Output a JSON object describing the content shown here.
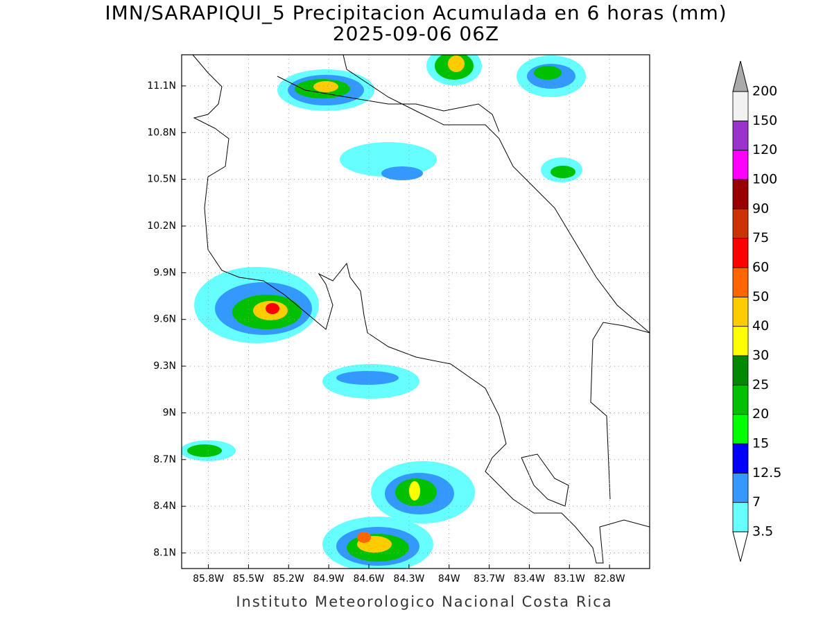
{
  "title": "IMN/SARAPIQUI_5 Precipitacion Acumulada en 6 horas (mm)",
  "subtitle": "2025-09-06 06Z",
  "footer": "Instituto Meteorologico Nacional Costa Rica",
  "map": {
    "xlim": [
      -86.0,
      -82.5
    ],
    "ylim": [
      8.0,
      11.3
    ],
    "xticks": [
      {
        "value": -85.8,
        "label": "85.8W"
      },
      {
        "value": -85.5,
        "label": "85.5W"
      },
      {
        "value": -85.2,
        "label": "85.2W"
      },
      {
        "value": -84.9,
        "label": "84.9W"
      },
      {
        "value": -84.6,
        "label": "84.6W"
      },
      {
        "value": -84.3,
        "label": "84.3W"
      },
      {
        "value": -84.0,
        "label": "84W"
      },
      {
        "value": -83.7,
        "label": "83.7W"
      },
      {
        "value": -83.4,
        "label": "83.4W"
      },
      {
        "value": -83.1,
        "label": "83.1W"
      },
      {
        "value": -82.8,
        "label": "82.8W"
      }
    ],
    "yticks": [
      {
        "value": 8.1,
        "label": "8.1N"
      },
      {
        "value": 8.4,
        "label": "8.4N"
      },
      {
        "value": 8.7,
        "label": "8.7N"
      },
      {
        "value": 9.0,
        "label": "9N"
      },
      {
        "value": 9.3,
        "label": "9.3N"
      },
      {
        "value": 9.6,
        "label": "9.6N"
      },
      {
        "value": 9.9,
        "label": "9.9N"
      },
      {
        "value": 10.2,
        "label": "10.2N"
      },
      {
        "value": 10.5,
        "label": "10.5N"
      },
      {
        "value": 10.8,
        "label": "10.8N"
      },
      {
        "value": 11.1,
        "label": "11.1N"
      }
    ]
  },
  "colorbar": {
    "levels": [
      3.5,
      7,
      12.5,
      15,
      20,
      25,
      30,
      40,
      50,
      60,
      75,
      90,
      100,
      120,
      150,
      200
    ],
    "colors": [
      "#66ffff",
      "#3399ff",
      "#0000ff",
      "#00ff00",
      "#00c000",
      "#008800",
      "#ffff00",
      "#ffcc00",
      "#ff6600",
      "#ff0000",
      "#cc3300",
      "#990000",
      "#ff00ff",
      "#9933cc",
      "#f2f2f2"
    ],
    "under_color": "#ffffff",
    "over_color": "#aaaaaa"
  }
}
